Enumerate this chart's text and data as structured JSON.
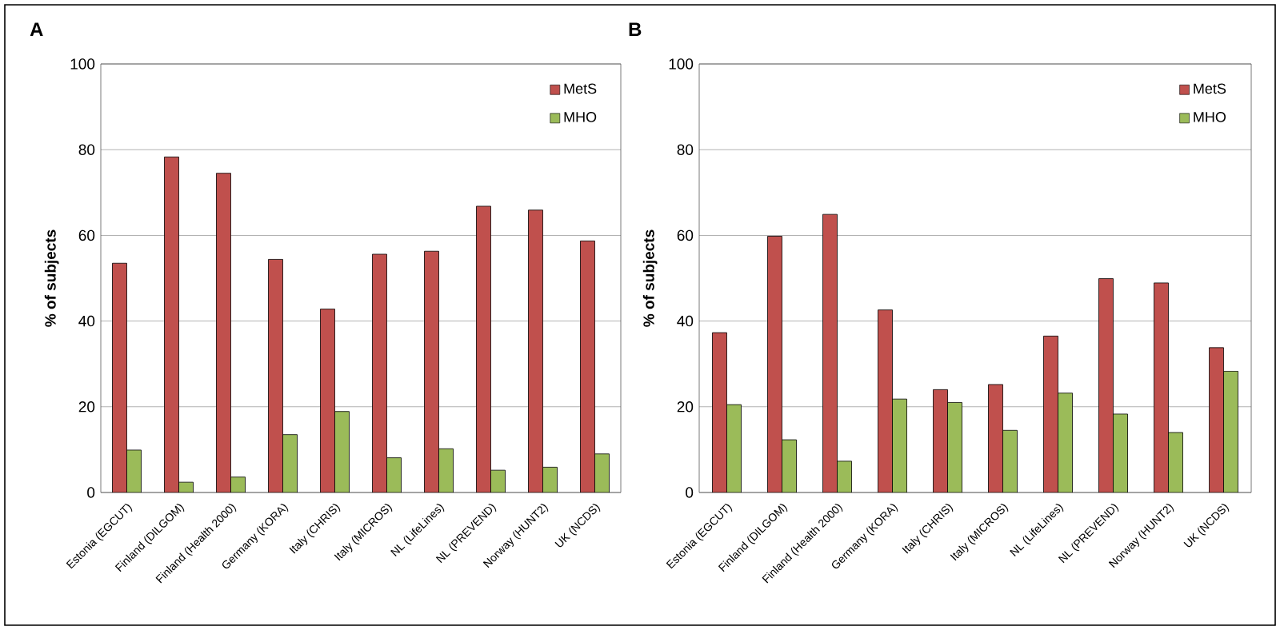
{
  "chart_data": [
    {
      "type": "bar",
      "title": "A",
      "ylabel": "% of subjects",
      "categories": [
        "Estonia (EGCUT)",
        "Finland (DILGOM)",
        "Finland (Health 2000)",
        "Germany (KORA)",
        "Italy (CHRIS)",
        "Italy (MICROS)",
        "NL (LifeLines)",
        "NL (PREVEND)",
        "Norway (HUNT2)",
        "UK (NCDS)"
      ],
      "series": [
        {
          "name": "MetS",
          "color": "#c0504d",
          "values": [
            53.5,
            78.3,
            74.5,
            54.4,
            42.8,
            55.6,
            56.3,
            66.8,
            65.9,
            58.7
          ]
        },
        {
          "name": "MHO",
          "color": "#9bbb59",
          "values": [
            9.9,
            2.4,
            3.6,
            13.5,
            18.9,
            8.1,
            10.2,
            5.2,
            5.9,
            9.0
          ]
        }
      ],
      "ylim": [
        0,
        100
      ],
      "yticks": [
        0,
        20,
        40,
        60,
        80,
        100
      ],
      "grid": "y",
      "legend": "top right"
    },
    {
      "type": "bar",
      "title": "B",
      "ylabel": "% of subjects",
      "categories": [
        "Estonia (EGCUT)",
        "Finland (DILGOM)",
        "Finland (Health 2000)",
        "Germany (KORA)",
        "Italy (CHRIS)",
        "Italy (MICROS)",
        "NL (LifeLines)",
        "NL (PREVEND)",
        "Norway (HUNT2)",
        "UK (NCDS)"
      ],
      "series": [
        {
          "name": "MetS",
          "color": "#c0504d",
          "values": [
            37.3,
            59.8,
            64.9,
            42.6,
            24.0,
            25.2,
            36.5,
            49.9,
            48.9,
            33.8
          ]
        },
        {
          "name": "MHO",
          "color": "#9bbb59",
          "values": [
            20.5,
            12.3,
            7.3,
            21.8,
            21.0,
            14.5,
            23.2,
            18.3,
            14.0,
            28.3
          ]
        }
      ],
      "ylim": [
        0,
        100
      ],
      "yticks": [
        0,
        20,
        40,
        60,
        80,
        100
      ],
      "grid": "y",
      "legend": "top right"
    }
  ]
}
